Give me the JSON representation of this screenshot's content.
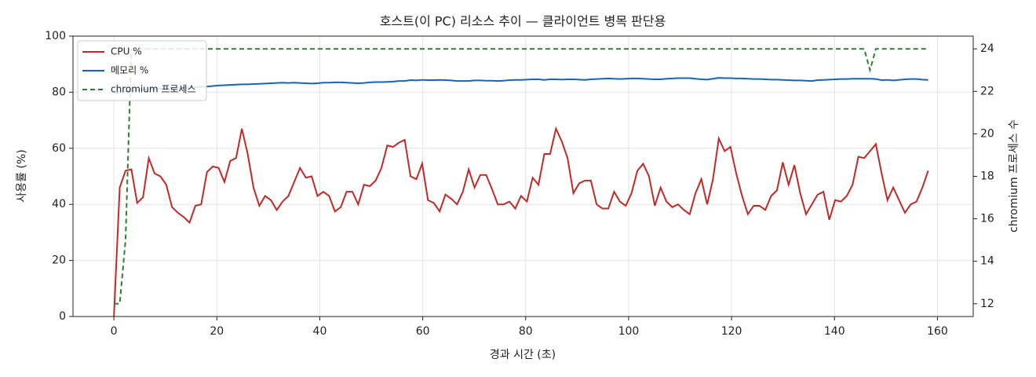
{
  "chart_data": {
    "type": "line",
    "title": "호스트(이 PC) 리소스 추이 — 클라이언트 병목 판단용",
    "xlabel": "경과 시간 (초)",
    "ylabel": "사용률 (%)",
    "y2label": "chromium 프로세스 수",
    "x": [
      0,
      1.13,
      2.26,
      3.39,
      4.52,
      5.65,
      6.78,
      7.91,
      9.04,
      10.17,
      11.3,
      12.43,
      13.56,
      14.69,
      15.82,
      16.95,
      18.08,
      19.21,
      20.34,
      21.47,
      22.6,
      23.73,
      24.86,
      25.99,
      27.12,
      28.25,
      29.38,
      30.51,
      31.64,
      32.77,
      33.9,
      35.03,
      36.16,
      37.29,
      38.42,
      39.55,
      40.68,
      41.81,
      42.94,
      44.07,
      45.2,
      46.33,
      47.46,
      48.59,
      49.72,
      50.85,
      51.98,
      53.11,
      54.24,
      55.37,
      56.5,
      57.63,
      58.76,
      59.89,
      61.02,
      62.15,
      63.28,
      64.41,
      65.54,
      66.67,
      67.8,
      68.93,
      70.06,
      71.19,
      72.32,
      73.45,
      74.58,
      75.71,
      76.84,
      77.97,
      79.1,
      80.23,
      81.36,
      82.49,
      83.62,
      84.75,
      85.88,
      87.01,
      88.14,
      89.27,
      90.4,
      91.53,
      92.66,
      93.79,
      94.92,
      96.05,
      97.18,
      98.31,
      99.44,
      100.57,
      101.7,
      102.83,
      103.96,
      105.09,
      106.22,
      107.35,
      108.48,
      109.61,
      110.74,
      111.87,
      113,
      114.13,
      115.26,
      116.39,
      117.52,
      118.65,
      119.78,
      120.91,
      122.04,
      123.17,
      124.3,
      125.43,
      126.56,
      127.69,
      128.82,
      129.95,
      131.08,
      132.21,
      133.34,
      134.47,
      135.6,
      136.73,
      137.86,
      138.99,
      140.12,
      141.25,
      142.38,
      143.51,
      144.64,
      145.77,
      146.9,
      148.03,
      149.16,
      150.29,
      151.42,
      152.55,
      153.68,
      154.81,
      155.94,
      157.07,
      158.2
    ],
    "series": [
      {
        "name": "CPU %",
        "color": "#c62828",
        "axis": "y",
        "linestyle": "solid",
        "values": [
          0,
          46,
          52,
          52.5,
          40.5,
          42.5,
          56.5,
          51,
          50,
          47,
          39,
          37,
          35.5,
          33.5,
          39.5,
          40,
          51.5,
          53.5,
          53,
          48,
          55.5,
          56.5,
          67,
          58,
          46,
          39.5,
          43,
          41.5,
          38,
          41,
          43,
          48,
          53,
          49.5,
          50,
          43,
          44.5,
          43,
          37.5,
          39,
          44.5,
          44.5,
          40,
          47,
          46.5,
          48.5,
          53,
          61,
          60.5,
          62,
          63,
          50,
          49,
          54.5,
          41.5,
          40.5,
          37.5,
          43.5,
          42,
          40,
          44.5,
          52.5,
          46,
          50.5,
          50.5,
          45.5,
          40,
          40,
          41,
          38.5,
          43,
          41,
          49.5,
          47,
          58,
          58,
          67,
          62.5,
          56.5,
          44,
          47.5,
          48.5,
          48.5,
          40,
          38.5,
          38.5,
          44.5,
          41,
          39.5,
          44,
          52,
          54.5,
          50,
          39.5,
          46,
          41,
          39,
          40,
          38,
          36.5,
          44,
          49,
          40,
          49,
          63.5,
          59,
          60.5,
          51,
          43,
          36.5,
          39.5,
          39.5,
          38,
          43,
          45,
          55,
          47,
          54,
          44,
          36.5,
          40,
          43.5,
          44.5,
          34.5,
          41.5,
          41,
          43,
          47,
          57,
          56.5,
          59,
          61.5,
          51,
          41.5,
          46,
          41.5,
          37,
          40,
          41,
          46,
          52
        ]
      },
      {
        "name": "메모리 %",
        "color": "#1565c0",
        "axis": "y",
        "linestyle": "solid",
        "values": [
          79.5,
          80,
          80.3,
          80.5,
          80.7,
          80.9,
          81,
          81.1,
          81.2,
          81.3,
          81.4,
          81.5,
          81.6,
          81.7,
          81.8,
          81.9,
          82,
          82.2,
          82.4,
          82.5,
          82.6,
          82.7,
          82.8,
          82.8,
          82.9,
          83,
          83.1,
          83.2,
          83.3,
          83.4,
          83.3,
          83.4,
          83.3,
          83.2,
          83.1,
          83.2,
          83.4,
          83.4,
          83.5,
          83.5,
          83.4,
          83.3,
          83.2,
          83.3,
          83.5,
          83.6,
          83.6,
          83.7,
          83.8,
          84,
          84,
          84.3,
          84.2,
          84.4,
          84.3,
          84.3,
          84.4,
          84.3,
          84.2,
          84,
          84,
          84,
          84.2,
          84.2,
          84.1,
          84.1,
          84,
          84.1,
          84.3,
          84.4,
          84.4,
          84.5,
          84.6,
          84.6,
          84.4,
          84.6,
          84.6,
          84.5,
          84.6,
          84.6,
          84.5,
          84.4,
          84.6,
          84.7,
          84.8,
          84.9,
          84.8,
          84.7,
          84.8,
          84.9,
          84.9,
          84.8,
          84.7,
          84.6,
          84.6,
          84.8,
          84.9,
          85,
          85,
          85,
          84.8,
          84.6,
          84.5,
          84.8,
          85.1,
          85,
          85,
          84.9,
          84.9,
          84.8,
          84.7,
          84.7,
          84.6,
          84.5,
          84.5,
          84.4,
          84.3,
          84.2,
          84.2,
          84.1,
          84,
          84.3,
          84.4,
          84.5,
          84.6,
          84.7,
          84.7,
          84.8,
          84.8,
          84.8,
          84.8,
          84.7,
          84.3,
          84.4,
          84.2,
          84.4,
          84.6,
          84.7,
          84.7,
          84.5,
          84.4
        ]
      },
      {
        "name": "chromium 프로세스",
        "color": "#2e7d32",
        "axis": "y2",
        "linestyle": "dashed",
        "values": [
          12,
          12,
          15,
          24,
          24,
          24,
          24,
          24,
          24,
          24,
          24,
          24,
          24,
          24,
          24,
          24,
          24,
          24,
          24,
          24,
          24,
          24,
          24,
          24,
          24,
          24,
          24,
          24,
          24,
          24,
          24,
          24,
          24,
          24,
          24,
          24,
          24,
          24,
          24,
          24,
          24,
          24,
          24,
          24,
          24,
          24,
          24,
          24,
          24,
          24,
          24,
          24,
          24,
          24,
          24,
          24,
          24,
          24,
          24,
          24,
          24,
          24,
          24,
          24,
          24,
          24,
          24,
          24,
          24,
          24,
          24,
          24,
          24,
          24,
          24,
          24,
          24,
          24,
          24,
          24,
          24,
          24,
          24,
          24,
          24,
          24,
          24,
          24,
          24,
          24,
          24,
          24,
          24,
          24,
          24,
          24,
          24,
          24,
          24,
          24,
          24,
          24,
          24,
          24,
          24,
          24,
          24,
          24,
          24,
          24,
          24,
          24,
          24,
          24,
          24,
          24,
          24,
          24,
          24,
          24,
          24,
          24,
          24,
          24,
          24,
          24,
          24,
          24,
          24,
          24,
          23,
          24,
          24,
          24,
          24,
          24,
          24,
          24,
          24,
          24,
          24
        ]
      }
    ],
    "xlim": [
      -7.95,
      166.95
    ],
    "xticks": [
      0,
      20,
      40,
      60,
      80,
      100,
      120,
      140,
      160
    ],
    "ylim": [
      0,
      100
    ],
    "yticks": [
      0,
      20,
      40,
      60,
      80,
      100
    ],
    "y2lim": [
      11.4,
      24.6
    ],
    "y2ticks": [
      12,
      14,
      16,
      18,
      20,
      22,
      24
    ],
    "grid": true,
    "legend": "upper-left"
  }
}
